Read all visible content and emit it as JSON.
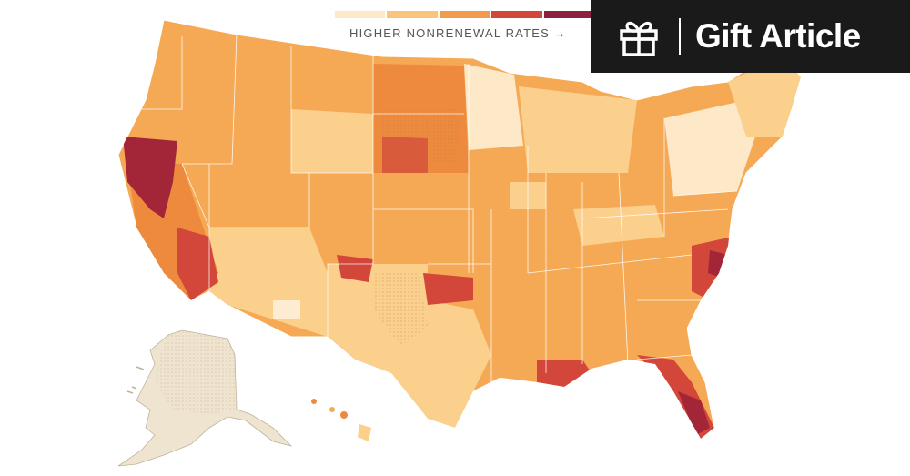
{
  "legend": {
    "label": "HIGHER NONRENEWAL RATES →",
    "colors": [
      "#fde9c7",
      "#fbc47c",
      "#f39b4c",
      "#d2473a",
      "#8a1f3e"
    ]
  },
  "gift_button": {
    "label": "Gift Article",
    "icon": "gift-icon"
  },
  "map": {
    "regions": [
      "contiguous-us",
      "alaska",
      "hawaii"
    ],
    "colors": {
      "lightest": "#fde9c7",
      "light": "#fbcf8c",
      "medium": "#f5a955",
      "strong": "#ee8a3d",
      "high": "#d2473a",
      "highest": "#a32638",
      "no_data": "#efe4d0"
    }
  }
}
